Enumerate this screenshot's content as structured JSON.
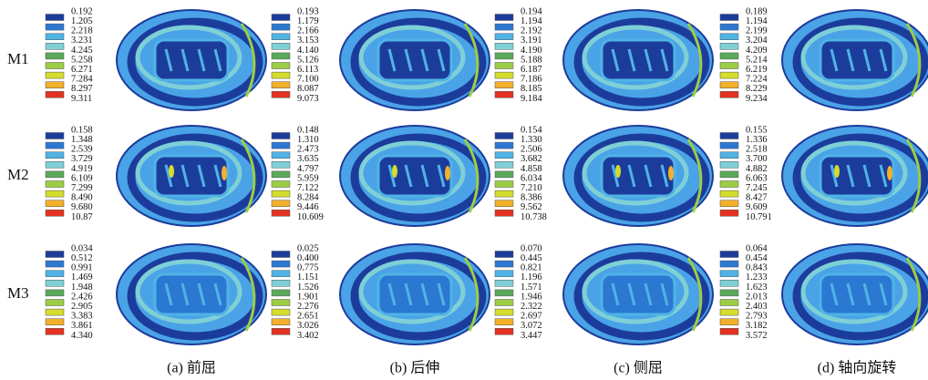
{
  "rows": [
    {
      "label": "M1",
      "legends": [
        [
          "0.192",
          "1.205",
          "2.218",
          "3.231",
          "4.245",
          "5.258",
          "6.271",
          "7.284",
          "8.297",
          "9.311"
        ],
        [
          "0.193",
          "1.179",
          "2.166",
          "3.153",
          "4.140",
          "5.126",
          "6.113",
          "7.100",
          "8.087",
          "9.073"
        ],
        [
          "0.194",
          "1.194",
          "2.192",
          "3.191",
          "4.190",
          "5.188",
          "6.187",
          "7.186",
          "8.185",
          "9.184"
        ],
        [
          "0.189",
          "1.194",
          "2.199",
          "3.204",
          "4.209",
          "5.214",
          "6.219",
          "7.224",
          "8.229",
          "9.234"
        ]
      ]
    },
    {
      "label": "M2",
      "legends": [
        [
          "0.158",
          "1.348",
          "2.539",
          "3.729",
          "4.919",
          "6.109",
          "7.299",
          "8.490",
          "9.680",
          "10.87"
        ],
        [
          "0.148",
          "1.310",
          "2.473",
          "3.635",
          "4.797",
          "5.959",
          "7.122",
          "8.284",
          "9.446",
          "10.609"
        ],
        [
          "0.154",
          "1.330",
          "2.506",
          "3.682",
          "4.858",
          "6.034",
          "7.210",
          "8.386",
          "9.562",
          "10.738"
        ],
        [
          "0.155",
          "1.336",
          "2.518",
          "3.700",
          "4.882",
          "6.063",
          "7.245",
          "8.427",
          "9.609",
          "10.791"
        ]
      ]
    },
    {
      "label": "M3",
      "legends": [
        [
          "0.034",
          "0.512",
          "0.991",
          "1.469",
          "1.948",
          "2.426",
          "2.905",
          "3.383",
          "3.861",
          "4.340"
        ],
        [
          "0.025",
          "0.400",
          "0.775",
          "1.151",
          "1.526",
          "1.901",
          "2.276",
          "2.651",
          "3.026",
          "3.402"
        ],
        [
          "0.070",
          "0.445",
          "0.821",
          "1.196",
          "1.571",
          "1.946",
          "2.322",
          "2.697",
          "3.072",
          "3.447"
        ],
        [
          "0.064",
          "0.454",
          "0.843",
          "1.233",
          "1.623",
          "2.013",
          "2.403",
          "2.793",
          "3.182",
          "3.572"
        ]
      ]
    }
  ],
  "captions": [
    "(a) 前屈",
    "(b) 后伸",
    "(c) 侧屈",
    "(d) 轴向旋转"
  ]
}
